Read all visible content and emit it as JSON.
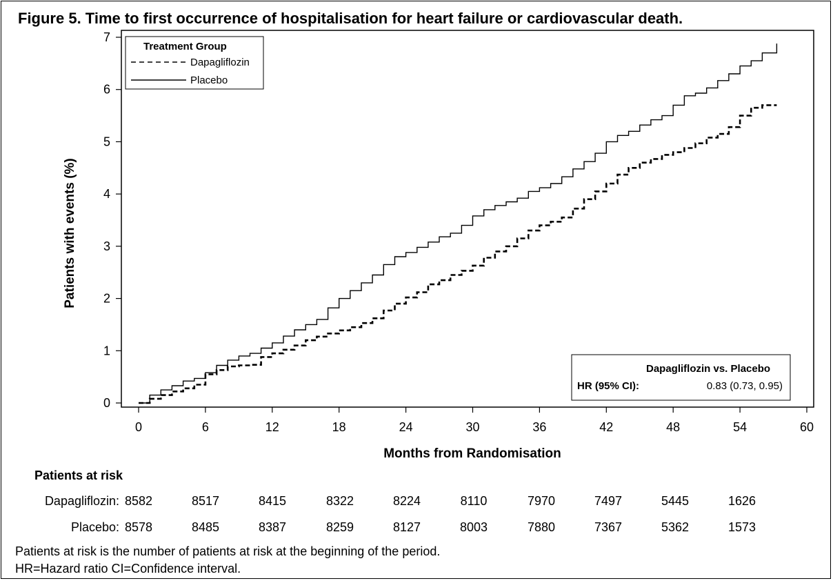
{
  "figure": {
    "title": "Figure 5. Time to first occurrence of hospitalisation for heart failure or cardiovascular death."
  },
  "legend": {
    "title": "Treatment Group",
    "items": [
      "Dapagliflozin",
      "Placebo"
    ]
  },
  "hr_box": {
    "heading": "Dapagliflozin vs. Placebo",
    "label": "HR (95% CI):",
    "value": "0.83 (0.73, 0.95)"
  },
  "risk_table": {
    "heading": "Patients at risk",
    "rows": [
      {
        "label": "Dapagliflozin:",
        "values": [
          "8582",
          "8517",
          "8415",
          "8322",
          "8224",
          "8110",
          "7970",
          "7497",
          "5445",
          "1626"
        ]
      },
      {
        "label": "Placebo:",
        "values": [
          "8578",
          "8485",
          "8387",
          "8259",
          "8127",
          "8003",
          "7880",
          "7367",
          "5362",
          "1573"
        ]
      }
    ]
  },
  "footnotes": [
    "Patients at risk is the number of patients at risk at the beginning of the period.",
    "HR=Hazard ratio CI=Confidence interval."
  ],
  "chart_data": {
    "type": "line",
    "title": "Figure 5. Time to first occurrence of hospitalisation for heart failure or cardiovascular death.",
    "xlabel": "Months from Randomisation",
    "ylabel": "Patients with events (%)",
    "xlim": [
      0,
      60
    ],
    "ylim": [
      0,
      7
    ],
    "xticks": [
      0,
      6,
      12,
      18,
      24,
      30,
      36,
      42,
      48,
      54,
      60
    ],
    "yticks": [
      0,
      1,
      2,
      3,
      4,
      5,
      6,
      7
    ],
    "grid": false,
    "legend_position": "top-left",
    "series": [
      {
        "name": "Dapagliflozin",
        "style": "dashed",
        "color": "#000000",
        "points": [
          [
            0,
            0
          ],
          [
            1,
            0.08
          ],
          [
            2,
            0.15
          ],
          [
            3,
            0.22
          ],
          [
            4,
            0.28
          ],
          [
            5,
            0.35
          ],
          [
            6,
            0.55
          ],
          [
            7,
            0.63
          ],
          [
            8,
            0.7
          ],
          [
            9,
            0.72
          ],
          [
            10,
            0.73
          ],
          [
            11,
            0.88
          ],
          [
            12,
            0.95
          ],
          [
            13,
            1.02
          ],
          [
            14,
            1.1
          ],
          [
            15,
            1.2
          ],
          [
            16,
            1.27
          ],
          [
            17,
            1.33
          ],
          [
            18,
            1.39
          ],
          [
            19,
            1.45
          ],
          [
            20,
            1.53
          ],
          [
            21,
            1.62
          ],
          [
            22,
            1.77
          ],
          [
            23,
            1.9
          ],
          [
            24,
            2.02
          ],
          [
            25,
            2.12
          ],
          [
            26,
            2.27
          ],
          [
            27,
            2.35
          ],
          [
            28,
            2.45
          ],
          [
            29,
            2.53
          ],
          [
            30,
            2.63
          ],
          [
            31,
            2.78
          ],
          [
            32,
            2.9
          ],
          [
            33,
            3.0
          ],
          [
            34,
            3.15
          ],
          [
            35,
            3.3
          ],
          [
            36,
            3.4
          ],
          [
            37,
            3.47
          ],
          [
            38,
            3.55
          ],
          [
            39,
            3.72
          ],
          [
            40,
            3.9
          ],
          [
            41,
            4.05
          ],
          [
            42,
            4.2
          ],
          [
            43,
            4.37
          ],
          [
            44,
            4.5
          ],
          [
            45,
            4.6
          ],
          [
            46,
            4.67
          ],
          [
            47,
            4.75
          ],
          [
            48,
            4.8
          ],
          [
            49,
            4.88
          ],
          [
            50,
            4.97
          ],
          [
            51,
            5.08
          ],
          [
            52,
            5.15
          ],
          [
            53,
            5.28
          ],
          [
            54,
            5.5
          ],
          [
            55,
            5.65
          ],
          [
            56,
            5.7
          ],
          [
            57.3,
            5.7
          ]
        ]
      },
      {
        "name": "Placebo",
        "style": "solid",
        "color": "#000000",
        "points": [
          [
            0,
            0
          ],
          [
            1,
            0.15
          ],
          [
            2,
            0.25
          ],
          [
            3,
            0.33
          ],
          [
            4,
            0.42
          ],
          [
            5,
            0.47
          ],
          [
            6,
            0.58
          ],
          [
            7,
            0.72
          ],
          [
            8,
            0.82
          ],
          [
            9,
            0.9
          ],
          [
            10,
            0.95
          ],
          [
            11,
            1.05
          ],
          [
            12,
            1.15
          ],
          [
            13,
            1.28
          ],
          [
            14,
            1.4
          ],
          [
            15,
            1.5
          ],
          [
            16,
            1.6
          ],
          [
            17,
            1.82
          ],
          [
            18,
            2.0
          ],
          [
            19,
            2.15
          ],
          [
            20,
            2.3
          ],
          [
            21,
            2.45
          ],
          [
            22,
            2.65
          ],
          [
            23,
            2.8
          ],
          [
            24,
            2.88
          ],
          [
            25,
            2.98
          ],
          [
            26,
            3.08
          ],
          [
            27,
            3.18
          ],
          [
            28,
            3.25
          ],
          [
            29,
            3.4
          ],
          [
            30,
            3.58
          ],
          [
            31,
            3.7
          ],
          [
            32,
            3.78
          ],
          [
            33,
            3.85
          ],
          [
            34,
            3.92
          ],
          [
            35,
            4.05
          ],
          [
            36,
            4.12
          ],
          [
            37,
            4.2
          ],
          [
            38,
            4.33
          ],
          [
            39,
            4.48
          ],
          [
            40,
            4.62
          ],
          [
            41,
            4.78
          ],
          [
            42,
            5.0
          ],
          [
            43,
            5.12
          ],
          [
            44,
            5.2
          ],
          [
            45,
            5.32
          ],
          [
            46,
            5.42
          ],
          [
            47,
            5.5
          ],
          [
            48,
            5.7
          ],
          [
            49,
            5.88
          ],
          [
            50,
            5.93
          ],
          [
            51,
            6.03
          ],
          [
            52,
            6.17
          ],
          [
            53,
            6.3
          ],
          [
            54,
            6.45
          ],
          [
            55,
            6.55
          ],
          [
            56,
            6.7
          ],
          [
            57,
            6.7
          ],
          [
            57.3,
            6.88
          ]
        ]
      }
    ]
  }
}
